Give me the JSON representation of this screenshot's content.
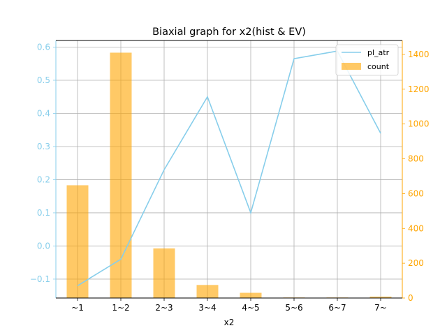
{
  "chart_data": {
    "type": "bar",
    "title": "Biaxial graph for x2(hist & EV)",
    "xlabel": "x2",
    "ylabel_left": "",
    "ylabel_right": "",
    "categories": [
      "~1",
      "1~2",
      "2~3",
      "3~4",
      "4~5",
      "5~6",
      "6~7",
      "7~"
    ],
    "series": [
      {
        "name": "pl_atr",
        "type": "line",
        "axis": "left",
        "color": "#87CEEB",
        "values": [
          -0.12,
          -0.04,
          0.23,
          0.45,
          0.1,
          0.565,
          0.588,
          0.34
        ]
      },
      {
        "name": "count",
        "type": "bar",
        "axis": "right",
        "color": "#FFA500",
        "opacity": 0.6,
        "values": [
          648,
          1410,
          285,
          75,
          30,
          3,
          3,
          8
        ]
      }
    ],
    "ylim_left": [
      -0.157,
      0.62
    ],
    "ylim_right": [
      0,
      1480
    ],
    "yticks_left": [
      "−0.1",
      "0.0",
      "0.1",
      "0.2",
      "0.3",
      "0.4",
      "0.5",
      "0.6"
    ],
    "yticks_right": [
      "0",
      "200",
      "400",
      "600",
      "800",
      "1000",
      "1200",
      "1400"
    ],
    "grid": true,
    "legend_placement": "top-right"
  }
}
